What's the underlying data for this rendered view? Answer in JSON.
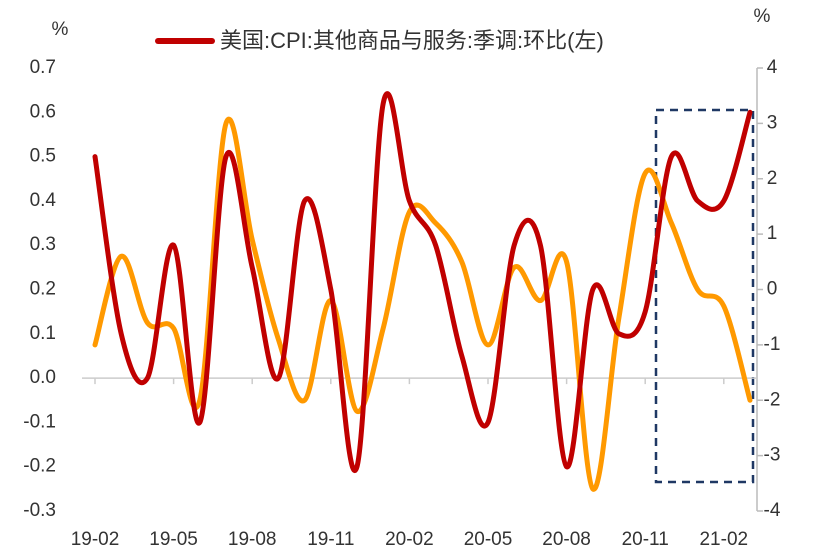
{
  "chart_data": {
    "type": "line",
    "ylabel": "%",
    "y2label": "%",
    "categories": [
      "19-02",
      null,
      null,
      "19-05",
      null,
      null,
      "19-08",
      null,
      null,
      "19-11",
      null,
      null,
      "20-02",
      null,
      null,
      "20-05",
      null,
      null,
      "20-08",
      null,
      null,
      "20-11",
      null,
      null,
      "21-02",
      null
    ],
    "series": [
      {
        "name": "美国:CPI:其他商品与服务:季调:环比(左)",
        "color": "#c00000",
        "values": [
          0.5,
          0.1,
          0.0,
          0.3,
          -0.1,
          0.5,
          0.25,
          0.0,
          0.4,
          0.2,
          -0.2,
          0.62,
          0.4,
          0.3,
          0.05,
          -0.1,
          0.3,
          0.3,
          -0.2,
          0.2,
          0.1,
          0.15,
          0.5,
          0.4,
          0.4,
          0.6
        ]
      },
      {
        "color": "#ff9900",
        "axis": "y2",
        "values": [
          -1.0,
          0.6,
          -0.6,
          -0.7,
          -2.0,
          3.0,
          0.9,
          -0.9,
          -2.0,
          -0.2,
          -2.2,
          -0.7,
          1.4,
          1.2,
          0.5,
          -1.0,
          0.4,
          -0.2,
          0.5,
          -3.6,
          -0.5,
          2.1,
          1.2,
          0.0,
          -0.3,
          -2.0
        ]
      }
    ],
    "ylim": [
      -0.3,
      0.7
    ],
    "yticks": [
      -0.3,
      -0.2,
      -0.1,
      {
        "value": 0,
        "label": "0.0"
      },
      0.1,
      0.2,
      0.3,
      0.4,
      0.5,
      0.6,
      0.7
    ],
    "y2lim": [
      -4,
      4
    ],
    "y2ticks": [
      -4,
      -3,
      -2,
      -1,
      0,
      1,
      2,
      3,
      4
    ]
  }
}
